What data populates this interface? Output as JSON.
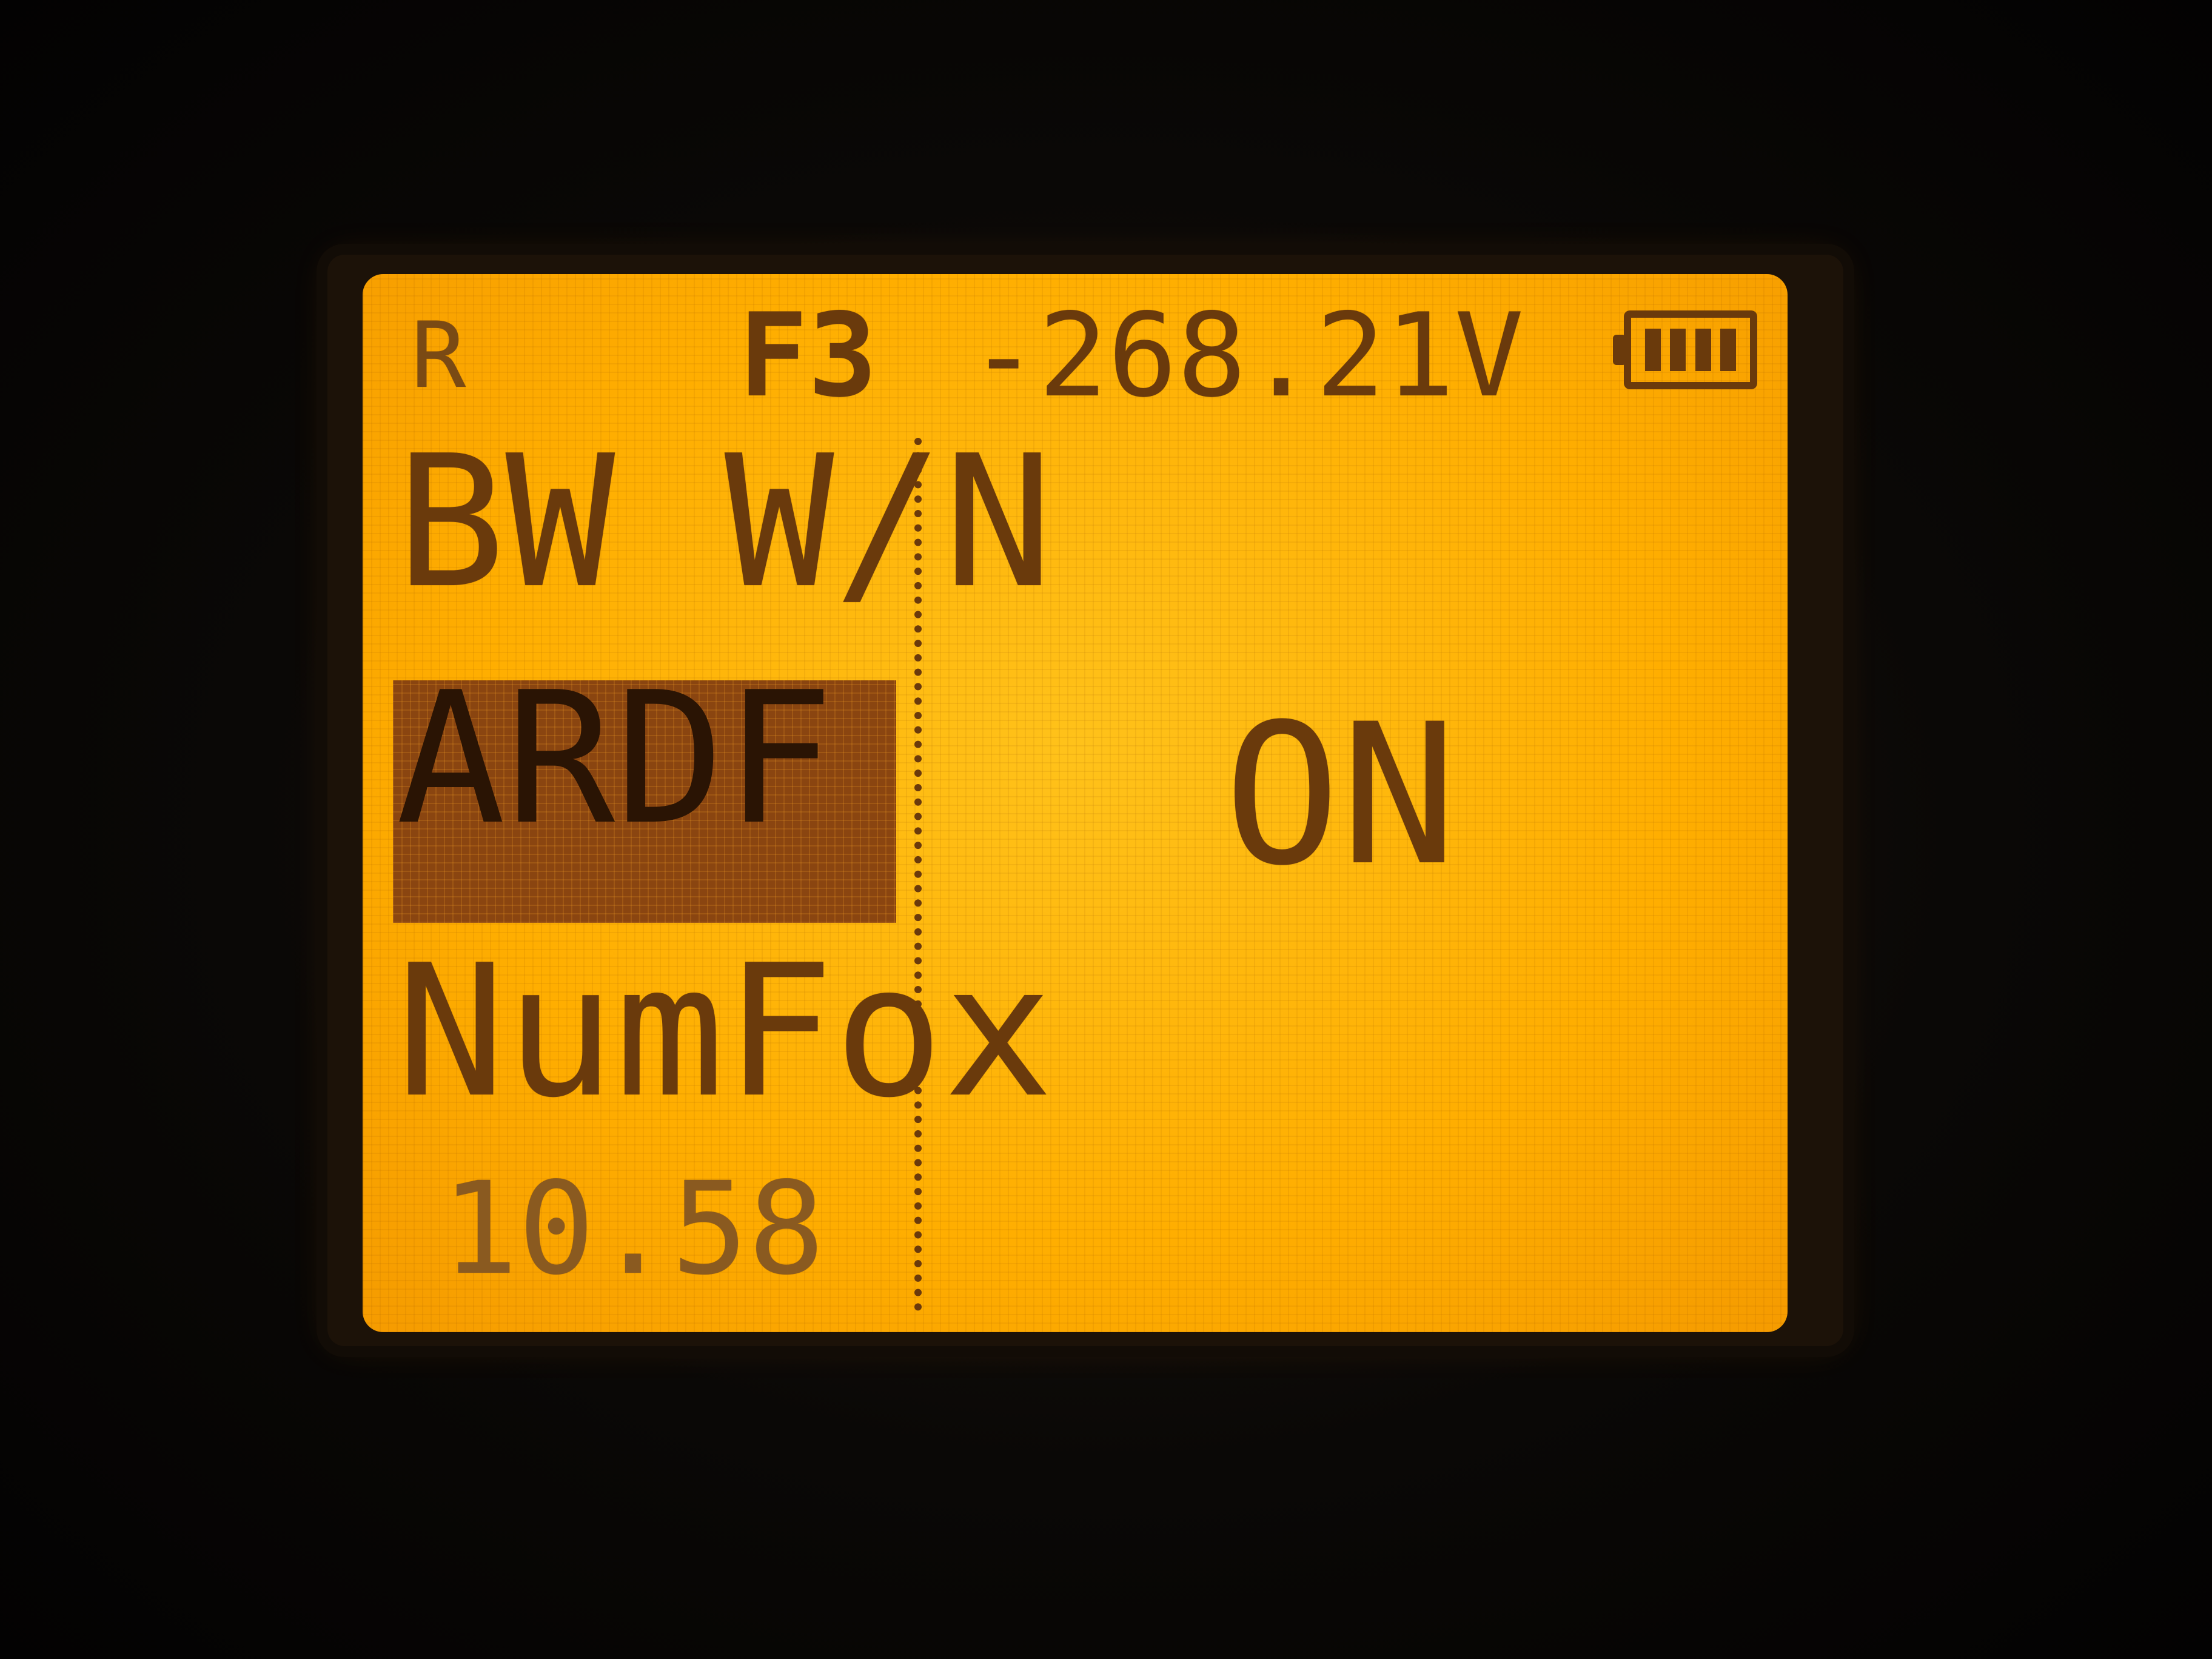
{
  "status_bar": {
    "mode": "R",
    "preset": "F3",
    "voltage": "-268.21V",
    "battery_icon": "battery-full-icon"
  },
  "menu": {
    "items": [
      {
        "label": "BW W/N",
        "selected": false
      },
      {
        "label": "ARDF",
        "selected": true
      },
      {
        "label": "NumFox",
        "selected": false
      }
    ]
  },
  "frequency_readout": "10.58",
  "selected_value": "ON",
  "colors": {
    "backlight": "#ffae00",
    "pixel_on": "#6a3a0c",
    "selection": "#8a4510"
  }
}
